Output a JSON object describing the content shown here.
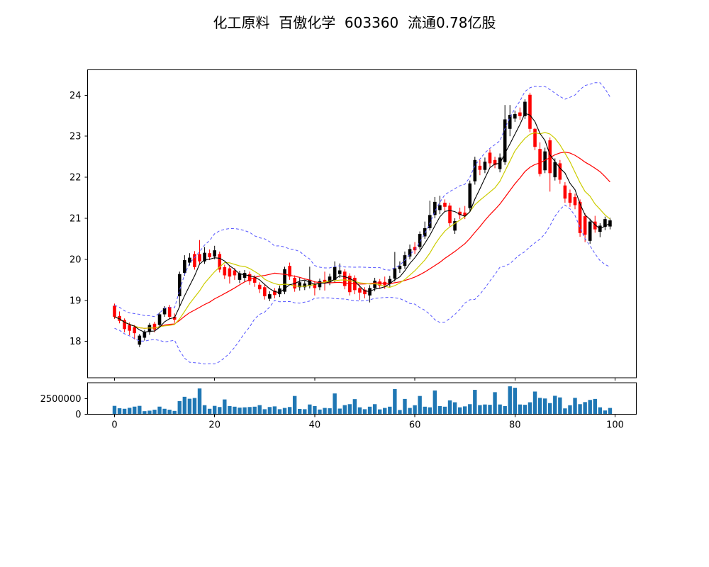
{
  "title": "化工原料  百傲化学  603360  流通0.78亿股",
  "header": {
    "sector": "化工原料",
    "stock_name": "百傲化学",
    "stock_code": "603360",
    "float_shares": "流通0.78亿股"
  },
  "chart_data": {
    "type": "candlestick+volume",
    "title": "化工原料  百傲化学  603360  流通0.78亿股",
    "xlabel": "",
    "ylabel": "",
    "x_range": [
      0,
      99
    ],
    "axes": {
      "x_ticks": [
        0,
        20,
        40,
        60,
        80,
        100
      ],
      "y_ticks": [
        18,
        19,
        20,
        21,
        22,
        23,
        24
      ],
      "ylim": [
        17.1,
        24.62
      ],
      "xlim": [
        -5.5,
        104.2
      ],
      "volume_ticks": [
        {
          "value": 0,
          "label": "0"
        },
        {
          "value": 2500000,
          "label": "2500000"
        }
      ],
      "volume_ylim": [
        0,
        5000000
      ],
      "grid": false
    },
    "colors": {
      "up": "#000000",
      "down": "#ff0000",
      "ma5": "#000000",
      "ma10": "#cccc00",
      "ma20": "#ff0000",
      "band": "#5555ff",
      "volume_bar": "#1f77b4",
      "frame": "#000000"
    },
    "overlays": {
      "moving_averages": [
        {
          "name": "MA5",
          "window": 5,
          "color": "#000000"
        },
        {
          "name": "MA10",
          "window": 10,
          "color": "#cccc00"
        },
        {
          "name": "MA20",
          "window": 20,
          "color": "#ff0000"
        }
      ],
      "bollinger": {
        "window": 20,
        "k": 2,
        "style": "dashed",
        "color": "#5555ff"
      }
    },
    "ohlc": [
      [
        18.87,
        18.92,
        18.55,
        18.6
      ],
      [
        18.62,
        18.73,
        18.44,
        18.5
      ],
      [
        18.52,
        18.56,
        18.22,
        18.3
      ],
      [
        18.4,
        18.46,
        18.15,
        18.26
      ],
      [
        18.35,
        18.4,
        18.05,
        18.2
      ],
      [
        17.92,
        18.18,
        17.86,
        18.14
      ],
      [
        18.09,
        18.28,
        18.02,
        18.23
      ],
      [
        18.23,
        18.45,
        18.16,
        18.4
      ],
      [
        18.43,
        18.48,
        18.22,
        18.29
      ],
      [
        18.4,
        18.71,
        18.34,
        18.66
      ],
      [
        18.66,
        18.86,
        18.6,
        18.81
      ],
      [
        18.84,
        18.89,
        18.54,
        18.6
      ],
      [
        18.6,
        18.68,
        18.45,
        18.53
      ],
      [
        19.1,
        19.7,
        18.86,
        19.64
      ],
      [
        19.67,
        20.1,
        19.6,
        19.98
      ],
      [
        19.92,
        20.15,
        19.85,
        20.04
      ],
      [
        20.13,
        20.2,
        19.75,
        19.81
      ],
      [
        20.13,
        20.47,
        19.88,
        19.95
      ],
      [
        19.95,
        20.3,
        19.89,
        20.16
      ],
      [
        20.15,
        20.24,
        19.98,
        20.05
      ],
      [
        20.07,
        20.33,
        20.0,
        20.22
      ],
      [
        20.13,
        20.19,
        19.68,
        19.75
      ],
      [
        19.81,
        19.87,
        19.52,
        19.61
      ],
      [
        19.78,
        19.84,
        19.41,
        19.58
      ],
      [
        19.73,
        19.79,
        19.5,
        19.61
      ],
      [
        19.5,
        19.72,
        19.42,
        19.66
      ],
      [
        19.55,
        19.74,
        19.46,
        19.67
      ],
      [
        19.64,
        19.7,
        19.38,
        19.47
      ],
      [
        19.55,
        19.61,
        19.33,
        19.43
      ],
      [
        19.38,
        19.44,
        19.18,
        19.27
      ],
      [
        19.32,
        19.38,
        19.02,
        19.1
      ],
      [
        19.04,
        19.22,
        18.98,
        19.15
      ],
      [
        19.24,
        19.3,
        19.05,
        19.13
      ],
      [
        19.15,
        19.36,
        19.08,
        19.29
      ],
      [
        19.21,
        19.82,
        19.15,
        19.76
      ],
      [
        19.84,
        19.92,
        19.5,
        19.58
      ],
      [
        19.55,
        19.61,
        19.21,
        19.29
      ],
      [
        19.32,
        19.56,
        19.24,
        19.44
      ],
      [
        19.32,
        19.48,
        19.25,
        19.41
      ],
      [
        19.35,
        19.82,
        19.29,
        19.5
      ],
      [
        19.41,
        19.47,
        19.12,
        19.3
      ],
      [
        19.32,
        19.53,
        19.25,
        19.47
      ],
      [
        19.5,
        19.7,
        19.24,
        19.41
      ],
      [
        19.44,
        19.65,
        19.37,
        19.58
      ],
      [
        19.5,
        19.95,
        19.44,
        19.81
      ],
      [
        19.64,
        19.9,
        19.55,
        19.73
      ],
      [
        19.7,
        19.76,
        19.27,
        19.35
      ],
      [
        19.6,
        19.66,
        19.12,
        19.2
      ],
      [
        19.55,
        19.61,
        19.15,
        19.25
      ],
      [
        19.3,
        19.37,
        19.01,
        19.19
      ],
      [
        19.26,
        19.32,
        19.05,
        19.15
      ],
      [
        19.12,
        19.37,
        18.95,
        19.3
      ],
      [
        19.3,
        19.55,
        19.22,
        19.48
      ],
      [
        19.46,
        19.52,
        19.28,
        19.36
      ],
      [
        19.45,
        19.58,
        19.28,
        19.37
      ],
      [
        19.4,
        19.6,
        19.33,
        19.52
      ],
      [
        19.53,
        20.18,
        19.46,
        19.78
      ],
      [
        19.76,
        19.95,
        19.67,
        19.84
      ],
      [
        19.84,
        20.19,
        19.77,
        20.1
      ],
      [
        20.07,
        20.36,
        20.0,
        20.25
      ],
      [
        20.3,
        20.42,
        20.13,
        20.22
      ],
      [
        20.3,
        20.68,
        20.24,
        20.62
      ],
      [
        20.56,
        20.92,
        20.5,
        20.76
      ],
      [
        20.76,
        21.43,
        20.7,
        21.08
      ],
      [
        21.08,
        21.52,
        21.0,
        21.4
      ],
      [
        21.2,
        21.55,
        21.1,
        21.32
      ],
      [
        21.38,
        21.46,
        21.18,
        21.28
      ],
      [
        21.31,
        21.38,
        20.8,
        20.88
      ],
      [
        20.7,
        21.0,
        20.62,
        20.93
      ],
      [
        21.16,
        21.26,
        20.98,
        21.08
      ],
      [
        21.14,
        21.3,
        20.98,
        21.06
      ],
      [
        21.25,
        21.92,
        21.18,
        21.85
      ],
      [
        21.9,
        22.5,
        21.82,
        22.42
      ],
      [
        22.28,
        22.42,
        22.05,
        22.18
      ],
      [
        22.18,
        22.48,
        22.1,
        22.38
      ],
      [
        22.6,
        22.68,
        22.25,
        22.34
      ],
      [
        22.42,
        22.5,
        22.22,
        22.3
      ],
      [
        22.2,
        22.58,
        22.12,
        22.48
      ],
      [
        22.37,
        23.76,
        22.3,
        23.41
      ],
      [
        23.18,
        23.76,
        23.0,
        23.52
      ],
      [
        23.43,
        23.62,
        23.35,
        23.54
      ],
      [
        23.58,
        23.7,
        23.4,
        23.49
      ],
      [
        23.49,
        23.9,
        23.42,
        23.84
      ],
      [
        24.01,
        24.06,
        23.1,
        23.18
      ],
      [
        23.18,
        23.2,
        22.66,
        22.74
      ],
      [
        22.69,
        22.85,
        22.02,
        22.08
      ],
      [
        22.17,
        22.72,
        22.1,
        22.63
      ],
      [
        22.9,
        22.97,
        21.65,
        22.1
      ],
      [
        22.0,
        22.46,
        21.92,
        22.37
      ],
      [
        22.34,
        22.42,
        21.84,
        21.94
      ],
      [
        21.8,
        21.88,
        21.38,
        21.48
      ],
      [
        21.62,
        21.7,
        21.28,
        21.38
      ],
      [
        21.52,
        21.6,
        21.22,
        21.32
      ],
      [
        21.4,
        21.46,
        20.55,
        20.64
      ],
      [
        21.05,
        21.12,
        20.42,
        20.6
      ],
      [
        20.45,
        20.99,
        20.38,
        20.92
      ],
      [
        20.92,
        21.06,
        20.65,
        20.73
      ],
      [
        20.67,
        20.88,
        20.54,
        20.82
      ],
      [
        20.79,
        21.04,
        20.71,
        20.98
      ],
      [
        20.8,
        21.01,
        20.73,
        20.95
      ]
    ],
    "volume": [
      1330000,
      950000,
      870000,
      1020000,
      1210000,
      1330000,
      490000,
      570000,
      720000,
      1210000,
      870000,
      720000,
      530000,
      2080000,
      2770000,
      2460000,
      2580000,
      4090000,
      1440000,
      870000,
      1330000,
      1150000,
      2350000,
      1300000,
      1200000,
      1050000,
      1100000,
      1150000,
      1200000,
      1450000,
      800000,
      1150000,
      1250000,
      800000,
      1000000,
      1150000,
      2900000,
      850000,
      800000,
      1550000,
      1300000,
      750000,
      1000000,
      950000,
      3300000,
      900000,
      1450000,
      1600000,
      2400000,
      1100000,
      800000,
      1200000,
      1600000,
      770000,
      1000000,
      1200000,
      4000000,
      670000,
      2430000,
      1000000,
      1430000,
      2900000,
      1200000,
      1100000,
      3770000,
      1300000,
      1200000,
      2200000,
      1900000,
      1100000,
      1250000,
      1600000,
      3870000,
      1450000,
      1550000,
      1500000,
      3500000,
      1550000,
      1300000,
      4430000,
      4200000,
      1550000,
      1500000,
      1900000,
      3600000,
      2600000,
      2500000,
      1770000,
      2930000,
      2670000,
      930000,
      1430000,
      2600000,
      1600000,
      1930000,
      2270000,
      2430000,
      1100000,
      600000,
      1000000
    ]
  }
}
